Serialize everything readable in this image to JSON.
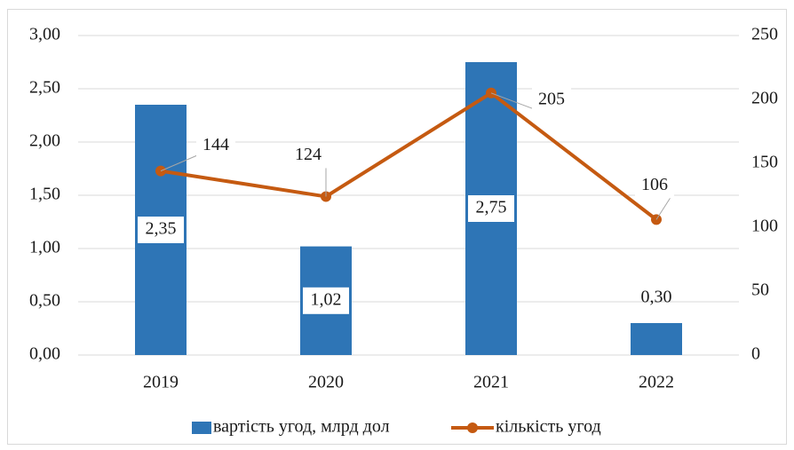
{
  "chart_data": {
    "type": "bar",
    "categories": [
      "2019",
      "2020",
      "2021",
      "2022"
    ],
    "series": [
      {
        "name": "вартість угод, млрд дол",
        "type": "bar",
        "color": "#2e75b6",
        "values": [
          2.35,
          1.02,
          2.75,
          0.3
        ],
        "value_labels": [
          "2,35",
          "1,02",
          "2,75",
          "0,30"
        ]
      },
      {
        "name": "кількість угод",
        "type": "line",
        "axis": "y2",
        "color": "#c55a11",
        "values": [
          144,
          124,
          205,
          106
        ]
      }
    ],
    "ylim": [
      0,
      3
    ],
    "yticks": [
      {
        "value": 0,
        "label": "0,00"
      },
      {
        "value": 0.5,
        "label": "0,50"
      },
      {
        "value": 1,
        "label": "1,00"
      },
      {
        "value": 1.5,
        "label": "1,50"
      },
      {
        "value": 2,
        "label": "2,00"
      },
      {
        "value": 2.5,
        "label": "2,50"
      },
      {
        "value": 3,
        "label": "3,00"
      }
    ],
    "y2lim": [
      0,
      250
    ],
    "y2ticks": [
      0,
      50,
      100,
      150,
      200,
      250
    ],
    "grid": true,
    "legend": "bottom"
  }
}
